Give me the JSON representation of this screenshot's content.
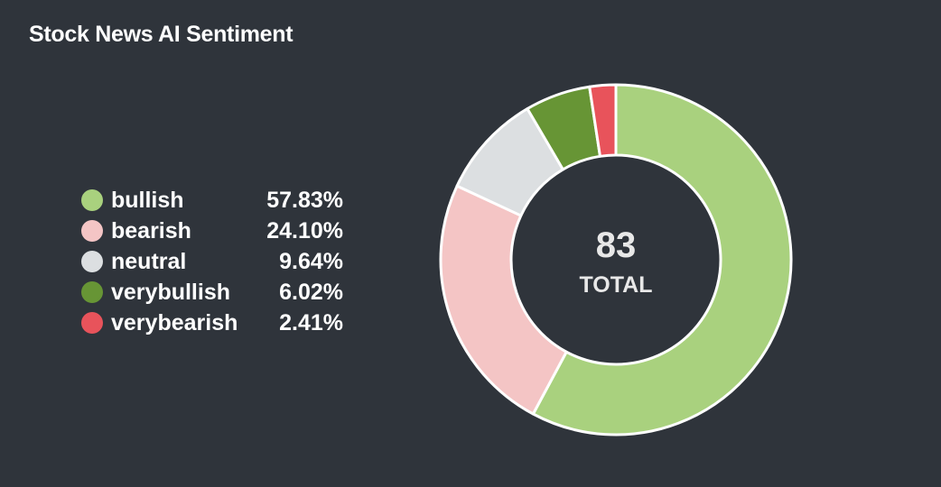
{
  "chart_data": {
    "type": "donut",
    "title": "Stock News AI Sentiment",
    "total": "83",
    "total_label": "TOTAL",
    "legend_placement": "left",
    "slices": [
      {
        "name": "bullish",
        "value": 57.83,
        "label": "57.83%",
        "color": "#a9d17e"
      },
      {
        "name": "bearish",
        "value": 24.1,
        "label": "24.10%",
        "color": "#f4c5c5"
      },
      {
        "name": "neutral",
        "value": 9.64,
        "label": "9.64%",
        "color": "#dcdfe1"
      },
      {
        "name": "verybullish",
        "value": 6.02,
        "label": "6.02%",
        "color": "#679535"
      },
      {
        "name": "verybearish",
        "value": 2.41,
        "label": "2.41%",
        "color": "#e8535b"
      }
    ]
  }
}
